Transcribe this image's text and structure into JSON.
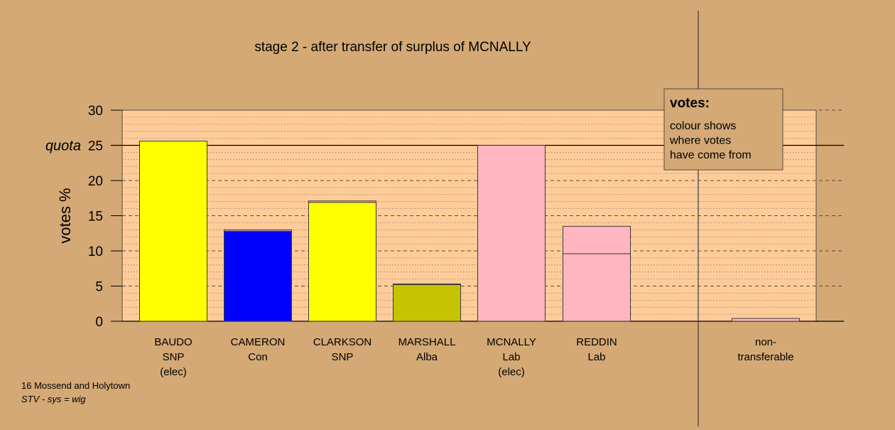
{
  "chart_data": {
    "type": "bar",
    "title": "stage 2 - after transfer of surplus of MCNALLY",
    "ylabel": "votes %",
    "ylim": [
      0,
      30
    ],
    "yticks": [
      0,
      5,
      10,
      15,
      20,
      25,
      30
    ],
    "quota": {
      "label": "quota",
      "value": 25
    },
    "grid": true,
    "colors": {
      "panel": "#ffcc99",
      "background": "#d4a976"
    },
    "categories": [
      {
        "lines": [
          "BAUDO",
          "SNP",
          "(elec)"
        ],
        "segments": [
          {
            "value": 25.6,
            "color": "#ffff00"
          }
        ]
      },
      {
        "lines": [
          "CAMERON",
          "Con"
        ],
        "segments": [
          {
            "value": 12.8,
            "color": "#0000ff"
          },
          {
            "value": 0.2,
            "color": "#ffb6c1"
          }
        ]
      },
      {
        "lines": [
          "CLARKSON",
          "SNP"
        ],
        "segments": [
          {
            "value": 16.9,
            "color": "#ffff00"
          },
          {
            "value": 0.2,
            "color": "#ffb6c1"
          }
        ]
      },
      {
        "lines": [
          "MARSHALL",
          "Alba"
        ],
        "segments": [
          {
            "value": 5.2,
            "color": "#c4c400"
          },
          {
            "value": 0.1,
            "color": "#ffb6c1"
          }
        ]
      },
      {
        "lines": [
          "MCNALLY",
          "Lab",
          "(elec)"
        ],
        "segments": [
          {
            "value": 25.0,
            "color": "#ffb6c1"
          }
        ]
      },
      {
        "lines": [
          "REDDIN",
          "Lab"
        ],
        "segments": [
          {
            "value": 9.6,
            "color": "#ffb6c1"
          },
          {
            "value": 3.9,
            "color": "#ffb6c1"
          }
        ]
      },
      {
        "lines": [
          "non-",
          "transferable"
        ],
        "separated": true,
        "segments": [
          {
            "value": 0.4,
            "color": "#ffb6c1"
          }
        ]
      }
    ],
    "legend": {
      "title": "votes:",
      "lines": [
        "colour shows",
        "where votes",
        "have come from"
      ],
      "placement": "top-right"
    }
  },
  "footer": {
    "ward": "16 Mossend and Holytown",
    "system": "STV - sys = wig"
  }
}
